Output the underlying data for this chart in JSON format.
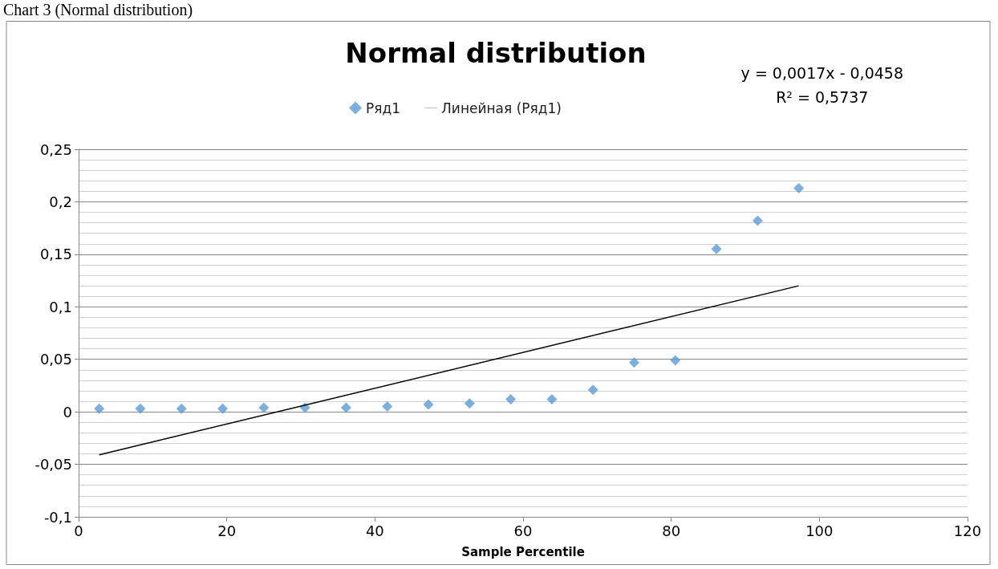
{
  "chart_data": {
    "type": "scatter",
    "title": "Normal distribution",
    "xlabel": "Sample Percentile",
    "annotations": [
      "Chart 3 (Normal distribution)",
      "y = 0,0017x - 0,0458\nR² = 0,5737"
    ],
    "series": [
      {
        "name": "Ряд1",
        "type": "scatter",
        "color": "#5b9bd5",
        "marker": "diamond",
        "x": [
          2.78,
          8.33,
          13.89,
          19.44,
          25,
          30.56,
          36.11,
          41.67,
          47.22,
          52.78,
          58.33,
          63.89,
          69.44,
          75,
          80.56,
          86.11,
          91.67,
          97.22
        ],
        "values": [
          0.003,
          0.003,
          0.003,
          0.003,
          0.004,
          0.004,
          0.004,
          0.005,
          0.007,
          0.008,
          0.012,
          0.012,
          0.021,
          0.047,
          0.049,
          0.155,
          0.182,
          0.213
        ]
      },
      {
        "name": "Линейная (Ряд1)",
        "type": "line",
        "color": "#000000",
        "marker": "none",
        "x": [
          2.78,
          97.22
        ],
        "values": [
          -0.041,
          0.12
        ]
      }
    ],
    "xlim": [
      0,
      120
    ],
    "xticks": [
      0,
      20,
      40,
      60,
      80,
      100,
      120
    ],
    "ylim": [
      -0.1,
      0.25
    ],
    "yticks": [
      {
        "value": -0.1,
        "label": "-0,1"
      },
      {
        "value": -0.05,
        "label": "-0,05"
      },
      {
        "value": 0,
        "label": "0"
      },
      {
        "value": 0.05,
        "label": "0,05"
      },
      {
        "value": 0.1,
        "label": "0,1"
      },
      {
        "value": 0.15,
        "label": "0,15"
      },
      {
        "value": 0.2,
        "label": "0,2"
      },
      {
        "value": 0.25,
        "label": "0,25"
      }
    ],
    "grid": "y",
    "legend": "top"
  }
}
